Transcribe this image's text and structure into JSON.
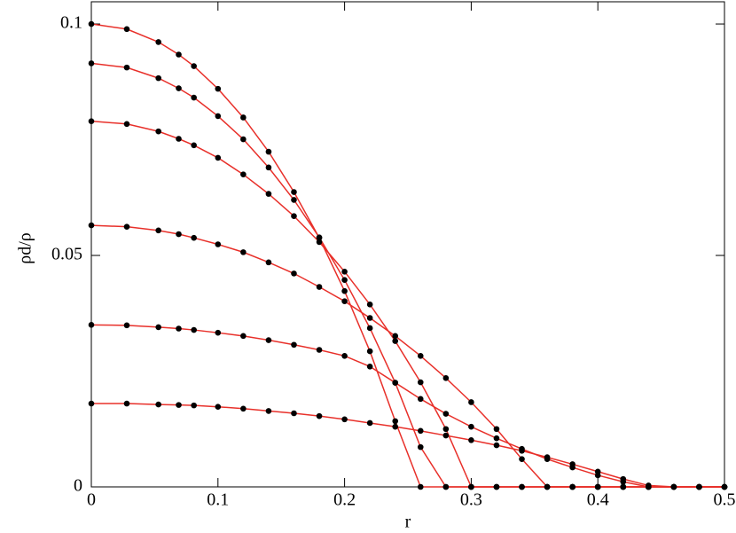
{
  "chart_data": {
    "type": "scatter-fit",
    "x_label": "r",
    "y_label": "ρd/ρ",
    "xlim": [
      0,
      0.5
    ],
    "ylim": [
      0,
      0.1048
    ],
    "xticks": [
      0,
      0.1,
      0.2,
      0.3,
      0.4,
      0.5
    ],
    "yticks": [
      0,
      0.05,
      0.1
    ],
    "point_color": "#000000",
    "line_color": "#e8302a",
    "x": [
      0,
      0.028,
      0.053,
      0.069,
      0.081,
      0.1,
      0.12,
      0.14,
      0.16,
      0.18,
      0.2,
      0.22,
      0.24,
      0.26,
      0.28,
      0.3,
      0.32,
      0.34,
      0.36,
      0.38,
      0.4,
      0.42,
      0.44,
      0.46,
      0.48,
      0.5
    ],
    "series": [
      {
        "values": [
          0.1,
          0.0989,
          0.0961,
          0.0934,
          0.0909,
          0.086,
          0.0798,
          0.0724,
          0.0637,
          0.0538,
          0.0423,
          0.0293,
          0.0142,
          0,
          0,
          0,
          0,
          0,
          0,
          0,
          0,
          0,
          0,
          0,
          0,
          0
        ]
      },
      {
        "values": [
          0.0915,
          0.0906,
          0.0883,
          0.0861,
          0.0841,
          0.0801,
          0.0751,
          0.069,
          0.062,
          0.0539,
          0.0447,
          0.0343,
          0.0225,
          0.0086,
          0,
          0,
          0,
          0,
          0,
          0,
          0,
          0,
          0,
          0,
          0,
          0
        ]
      },
      {
        "values": [
          0.079,
          0.0784,
          0.0768,
          0.0752,
          0.0738,
          0.0711,
          0.0675,
          0.0633,
          0.0585,
          0.0529,
          0.0465,
          0.0394,
          0.0315,
          0.0226,
          0.0125,
          0,
          0,
          0,
          0,
          0,
          0,
          0,
          0,
          0,
          0,
          0
        ]
      },
      {
        "values": [
          0.0565,
          0.0562,
          0.0554,
          0.0546,
          0.0538,
          0.0524,
          0.0507,
          0.0485,
          0.0461,
          0.0432,
          0.0401,
          0.0365,
          0.0326,
          0.0283,
          0.0235,
          0.0183,
          0.0125,
          0.006,
          0,
          0,
          0,
          0,
          0,
          0,
          0,
          0
        ]
      },
      {
        "values": [
          0.035,
          0.0349,
          0.0345,
          0.0342,
          0.0339,
          0.0333,
          0.0326,
          0.0317,
          0.0307,
          0.0296,
          0.0283,
          0.026,
          0.0225,
          0.019,
          0.0158,
          0.013,
          0.0105,
          0.0082,
          0.006,
          0.0042,
          0.0025,
          0.0011,
          0,
          0,
          0,
          0
        ]
      },
      {
        "values": [
          0.018,
          0.018,
          0.0178,
          0.0177,
          0.0176,
          0.0173,
          0.0169,
          0.0164,
          0.0159,
          0.0153,
          0.0146,
          0.0138,
          0.013,
          0.0121,
          0.0111,
          0.0101,
          0.009,
          0.0078,
          0.0064,
          0.0049,
          0.0033,
          0.0017,
          0.0003,
          0,
          0,
          0
        ]
      }
    ]
  }
}
